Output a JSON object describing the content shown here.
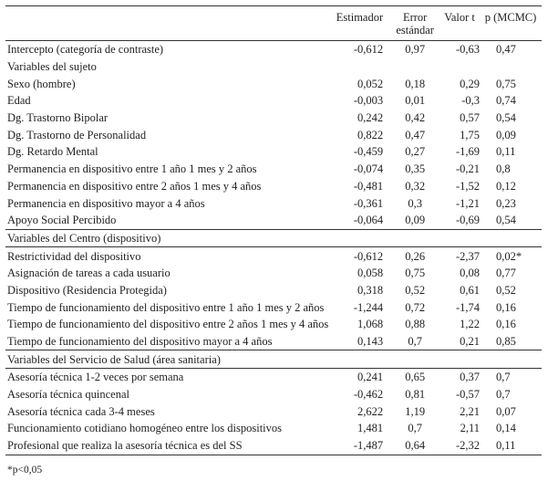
{
  "headers": {
    "label": "",
    "estimador": "Estimador",
    "error": "Error estándar",
    "valor_t": "Valor t",
    "p": "p (MCMC)"
  },
  "rows": [
    {
      "label": "Intercepto (categoría de contraste)",
      "est": "-0,612",
      "err": "0,97",
      "t": "-0,63",
      "p": "0,47"
    },
    {
      "label": "Variables del sujeto",
      "section": true
    },
    {
      "label": "Sexo (hombre)",
      "est": "0,052",
      "err": "0,18",
      "t": "0,29",
      "p": "0,75"
    },
    {
      "label": "Edad",
      "est": "-0,003",
      "err": "0,01",
      "t": "-0,3",
      "p": "0,74"
    },
    {
      "label": "Dg. Trastorno Bipolar",
      "est": "0,242",
      "err": "0,42",
      "t": "0,57",
      "p": "0,54"
    },
    {
      "label": "Dg. Trastorno de Personalidad",
      "est": "0,822",
      "err": "0,47",
      "t": "1,75",
      "p": "0,09"
    },
    {
      "label": "Dg. Retardo Mental",
      "est": "-0,459",
      "err": "0,27",
      "t": "-1,69",
      "p": "0,11"
    },
    {
      "label": "Permanencia en dispositivo entre 1 año 1 mes y 2 años",
      "est": "-0,074",
      "err": "0,35",
      "t": "-0,21",
      "p": "0,8"
    },
    {
      "label": "Permanencia en dispositivo entre 2 años 1 mes y 4 años",
      "est": "-0,481",
      "err": "0,32",
      "t": "-1,52",
      "p": "0,12"
    },
    {
      "label": "Permanencia en dispositivo mayor a 4 años",
      "est": "-0,361",
      "err": "0,3",
      "t": "-1,21",
      "p": "0,23"
    },
    {
      "label": "Apoyo Social Percibido",
      "est": "-0,064",
      "err": "0,09",
      "t": "-0,69",
      "p": "0,54",
      "rule": true
    },
    {
      "label": "Variables del Centro (dispositivo)",
      "section": true,
      "rule": true
    },
    {
      "label": "Restrictividad del dispositivo",
      "est": "-0,612",
      "err": "0,26",
      "t": "-2,37",
      "p": "0,02*"
    },
    {
      "label": "Asignación de tareas a cada usuario",
      "est": "0,058",
      "err": "0,75",
      "t": "0,08",
      "p": "0,77"
    },
    {
      "label": "Dispositivo (Residencia Protegida)",
      "est": "0,318",
      "err": "0,52",
      "t": "0,61",
      "p": "0,52"
    },
    {
      "label": "Tiempo de funcionamiento del dispositivo entre 1 año 1 mes y 2 años",
      "est": "-1,244",
      "err": "0,72",
      "t": "-1,74",
      "p": "0,16"
    },
    {
      "label": "Tiempo de funcionamiento del dispositivo entre 2 años 1 mes y 4 años",
      "est": "1,068",
      "err": "0,88",
      "t": "1,22",
      "p": "0,16"
    },
    {
      "label": "Tiempo de funcionamiento del dispositivo mayor a 4 años",
      "est": "0,143",
      "err": "0,7",
      "t": "0,21",
      "p": "0,85",
      "rule": true
    },
    {
      "label": "Variables del Servicio de Salud (área sanitaria)",
      "section": true,
      "rule": true
    },
    {
      "label": "Asesoría técnica 1-2 veces por semana",
      "est": "0,241",
      "err": "0,65",
      "t": "0,37",
      "p": "0,7"
    },
    {
      "label": "Asesoría técnica quincenal",
      "est": "-0,462",
      "err": "0,81",
      "t": "-0,57",
      "p": "0,7"
    },
    {
      "label": "Asesoría técnica cada 3-4 meses",
      "est": "2,622",
      "err": "1,19",
      "t": "2,21",
      "p": "0,07"
    },
    {
      "label": "Funcionamiento cotidiano homogéneo entre los dispositivos",
      "est": "1,481",
      "err": "0,7",
      "t": "2,11",
      "p": "0,14"
    },
    {
      "label": "Profesional que realiza la asesoría técnica es del SS",
      "est": "-1,487",
      "err": "0,64",
      "t": "-2,32",
      "p": "0,11",
      "rule": true
    }
  ],
  "footnote": "*p<0,05"
}
